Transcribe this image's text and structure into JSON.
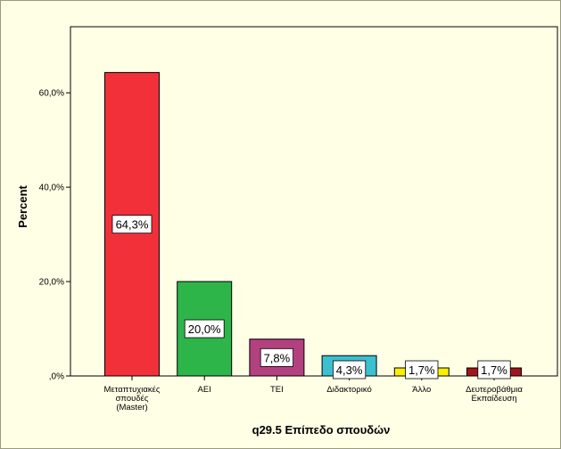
{
  "chart_data": {
    "type": "bar",
    "title": "",
    "xlabel": "q29.5 Επίπεδο σπουδών",
    "ylabel": "Percent",
    "ylim": [
      0,
      74
    ],
    "grid": false,
    "legend": "none",
    "yticks": [
      {
        "value": 0,
        "label": ",0%"
      },
      {
        "value": 20,
        "label": "20,0%"
      },
      {
        "value": 40,
        "label": "40,0%"
      },
      {
        "value": 60,
        "label": "60,0%"
      }
    ],
    "categories": [
      [
        "Μεταπτυχιακές",
        "σπουδές",
        "(Master)"
      ],
      [
        "ΑΕΙ"
      ],
      [
        "ΤΕΙ"
      ],
      [
        "Διδακτορικό"
      ],
      [
        "Άλλο"
      ],
      [
        "Δευτεροβάθμια",
        "Εκπαίδευση"
      ]
    ],
    "values": [
      64.3,
      20.0,
      7.8,
      4.3,
      1.7,
      1.7
    ],
    "data_labels": [
      "64,3%",
      "20,0%",
      "7,8%",
      "4,3%",
      "1,7%",
      "1,7%"
    ],
    "colors": [
      "#f2303a",
      "#2db54a",
      "#b3407f",
      "#3cbfcf",
      "#f8f000",
      "#a0161e"
    ],
    "background": "#ffffe6",
    "plot_background": "#ffffe6"
  }
}
